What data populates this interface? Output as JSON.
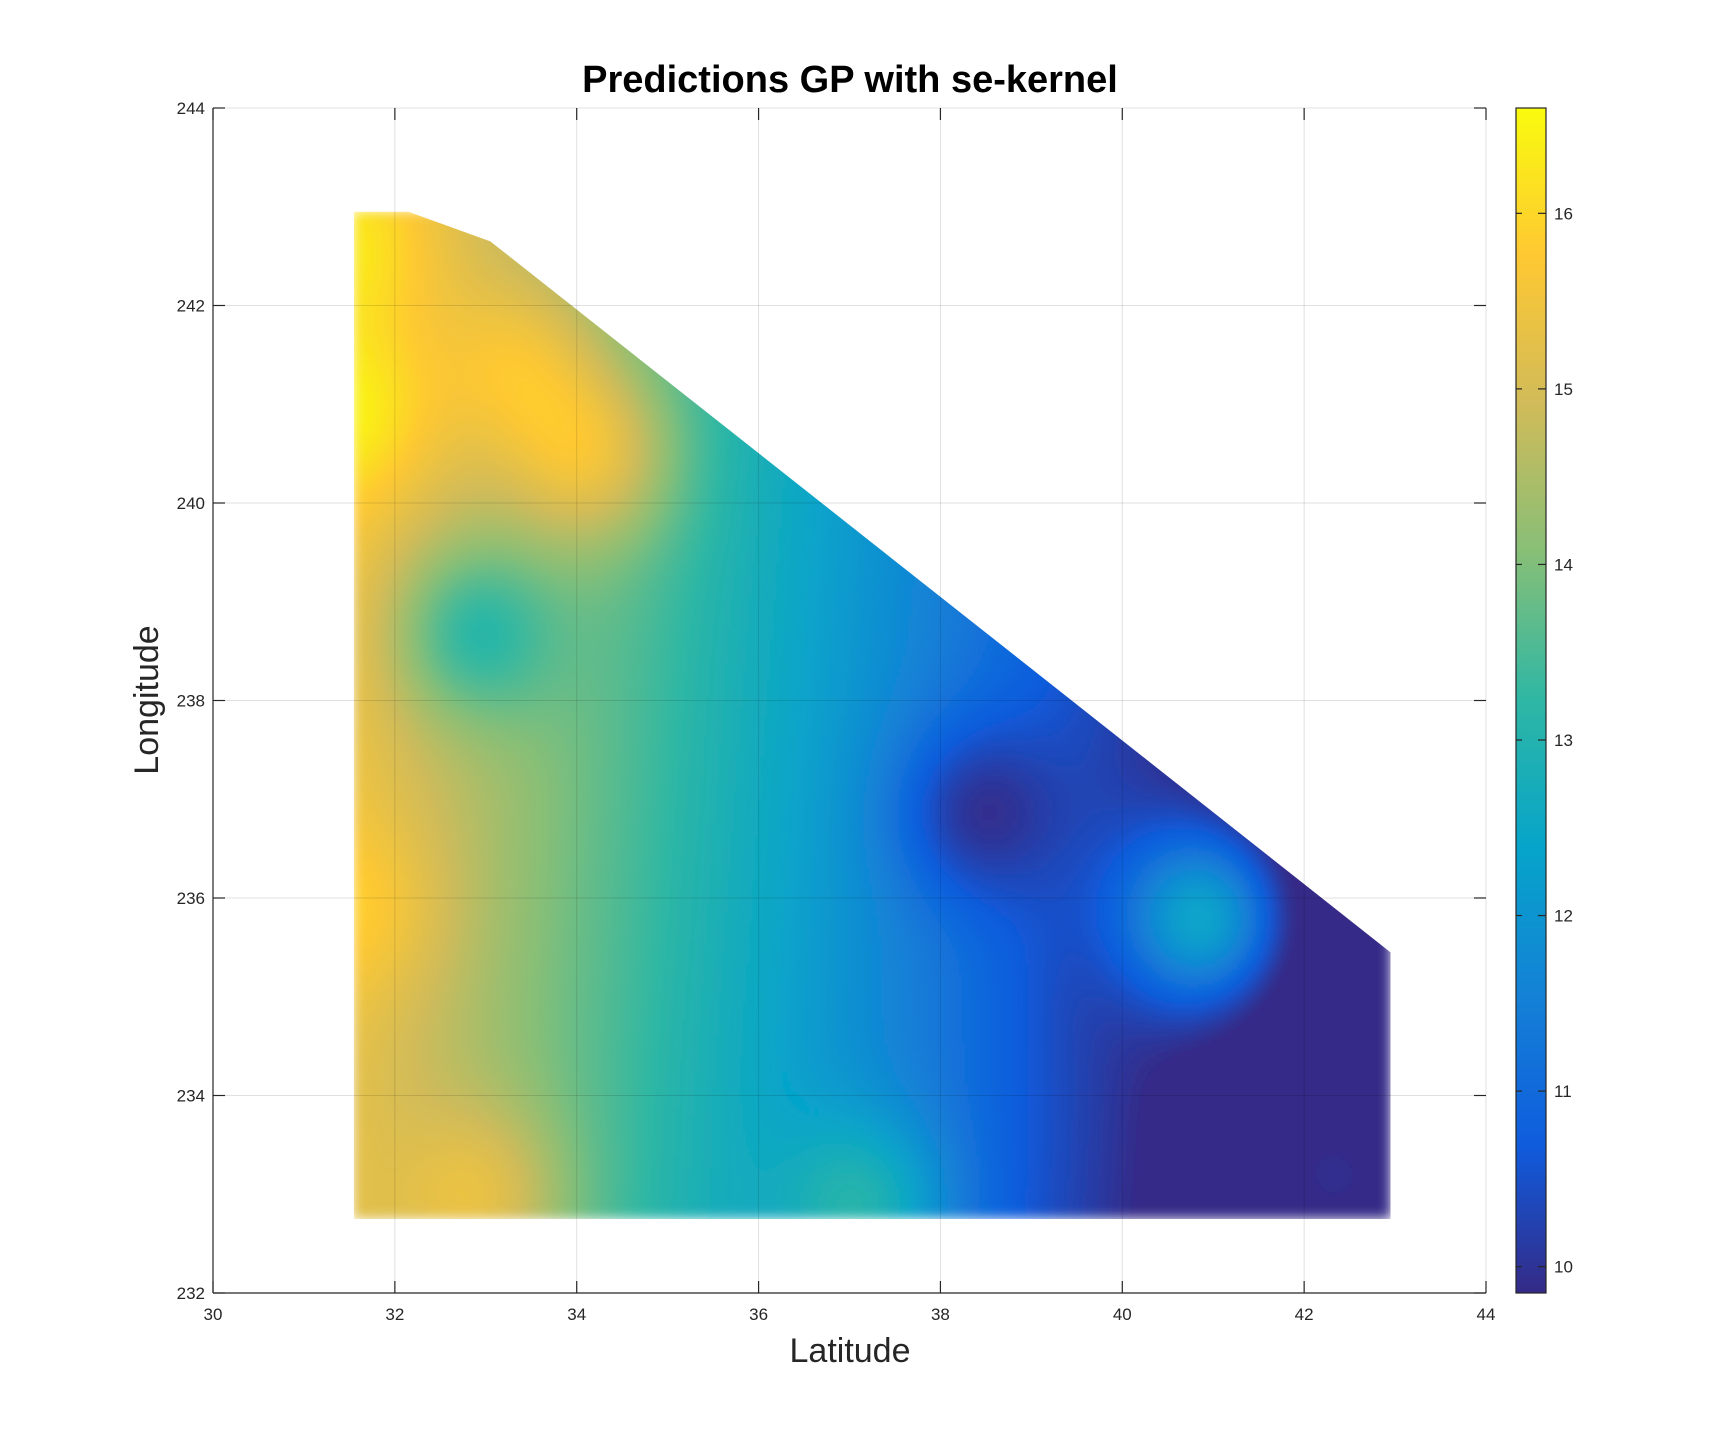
{
  "chart_data": {
    "type": "heatmap",
    "title": "Predictions GP with se-kernel",
    "xlabel": "Latitude",
    "ylabel": "Longitude",
    "xlim": [
      30,
      44
    ],
    "ylim": [
      232,
      244
    ],
    "xticks": [
      30,
      32,
      34,
      36,
      38,
      40,
      42,
      44
    ],
    "yticks": [
      232,
      234,
      236,
      238,
      240,
      242,
      244
    ],
    "grid": true,
    "colormap": "parula",
    "colorbar": {
      "range": [
        9.85,
        16.6
      ],
      "ticks": [
        10,
        11,
        12,
        13,
        14,
        15,
        16
      ],
      "colors": [
        "#352a87",
        "#0f5cdd",
        "#1481d6",
        "#06a4ca",
        "#2eb7a4",
        "#87bf77",
        "#d1bb59",
        "#fec832",
        "#f9fb0e"
      ]
    },
    "region_polygon": [
      [
        31.55,
        232.75
      ],
      [
        31.55,
        242.95
      ],
      [
        32.15,
        242.95
      ],
      [
        33.05,
        242.65
      ],
      [
        42.95,
        235.45
      ],
      [
        42.95,
        232.75
      ]
    ],
    "hotspots": [
      {
        "x": 31.7,
        "y": 242.6,
        "value": 16.2
      },
      {
        "x": 31.6,
        "y": 240.9,
        "value": 16.4
      },
      {
        "x": 31.7,
        "y": 235.9,
        "value": 15.8
      },
      {
        "x": 33.4,
        "y": 241.4,
        "value": 15.5
      },
      {
        "x": 34.2,
        "y": 240.5,
        "value": 15.4
      },
      {
        "x": 33.0,
        "y": 233.0,
        "value": 15.3
      },
      {
        "x": 32.8,
        "y": 238.7,
        "value": 13.2
      },
      {
        "x": 38.3,
        "y": 236.9,
        "value": 10.0
      },
      {
        "x": 39.7,
        "y": 235.2,
        "value": 10.1
      },
      {
        "x": 42.5,
        "y": 233.2,
        "value": 9.9
      },
      {
        "x": 40.9,
        "y": 235.8,
        "value": 12.4
      },
      {
        "x": 37.2,
        "y": 232.9,
        "value": 13.0
      }
    ]
  }
}
